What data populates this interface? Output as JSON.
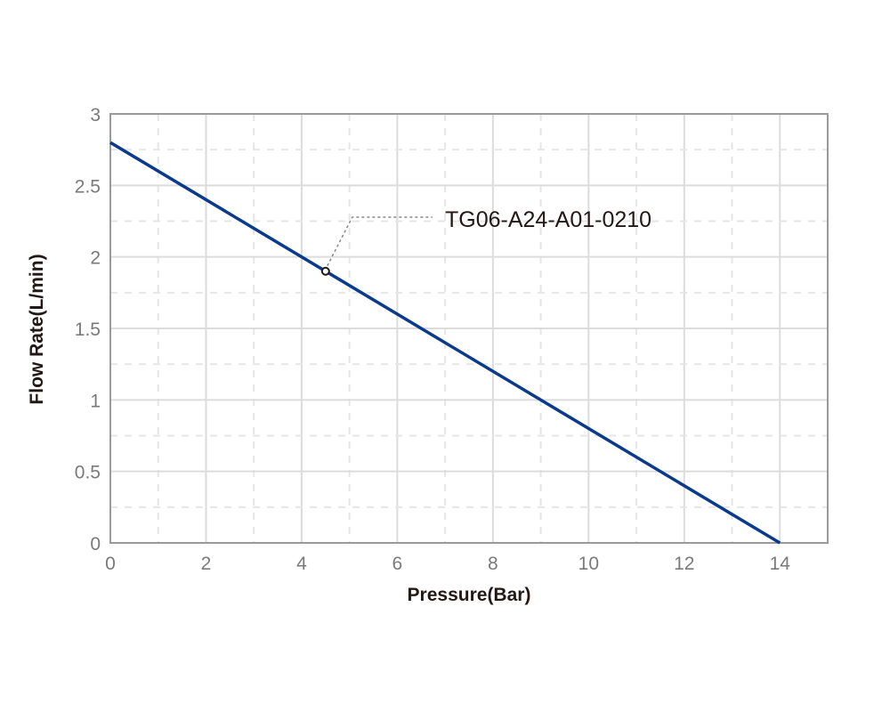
{
  "chart_data": {
    "type": "line",
    "title": "",
    "xlabel": "Pressure(Bar)",
    "ylabel": "Flow Rate(L/min)",
    "xlim": [
      0,
      15
    ],
    "ylim": [
      0,
      3
    ],
    "x_ticks": [
      0,
      2,
      4,
      6,
      8,
      10,
      12,
      14
    ],
    "y_ticks": [
      0,
      0.5,
      1,
      1.5,
      2,
      2.5,
      3
    ],
    "x_tick_labels": [
      "0",
      "2",
      "4",
      "6",
      "8",
      "10",
      "12",
      "14"
    ],
    "y_tick_labels": [
      "0",
      "0.5",
      "1",
      "1.5",
      "2",
      "2.5",
      "3"
    ],
    "grid": true,
    "series": [
      {
        "name": "TG06-A24-A01-0210",
        "color": "#0a3a8c",
        "x": [
          0,
          14
        ],
        "y": [
          2.8,
          0
        ]
      }
    ],
    "annotations": [
      {
        "text": "TG06-A24-A01-0210",
        "point": {
          "x": 4.5,
          "y": 1.9
        }
      }
    ]
  }
}
